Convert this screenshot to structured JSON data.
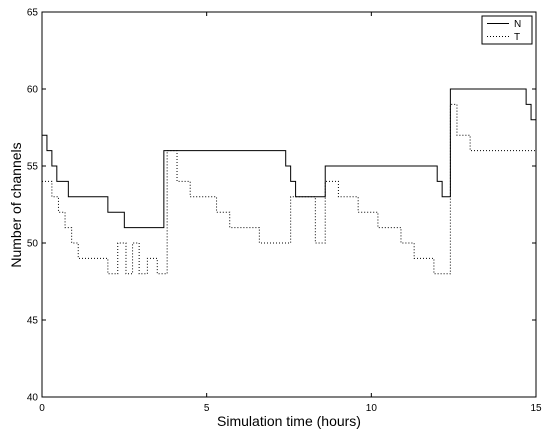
{
  "chart_data": {
    "type": "line",
    "xlabel": "Simulation time (hours)",
    "ylabel": "Number of channels",
    "xlim": [
      0,
      15
    ],
    "ylim": [
      40,
      65
    ],
    "xticks": [
      "0",
      "5",
      "10",
      "15"
    ],
    "yticks": [
      "40",
      "45",
      "50",
      "55",
      "60",
      "65"
    ],
    "grid": false,
    "legend_position": "top-right",
    "series": [
      {
        "name": "N",
        "style": "solid",
        "color": "#000000",
        "step": true,
        "x": [
          0,
          0.15,
          0.3,
          0.45,
          0.8,
          2.0,
          2.5,
          3.7,
          7.4,
          7.55,
          7.7,
          8.6,
          12.0,
          12.15,
          12.4,
          14.7,
          14.85,
          15.0
        ],
        "y": [
          57,
          56,
          55,
          54,
          53,
          52,
          51,
          56,
          55,
          54,
          53,
          55,
          54,
          53,
          60,
          59,
          58,
          58
        ]
      },
      {
        "name": "T",
        "style": "dotted",
        "color": "#000000",
        "step": true,
        "x": [
          0,
          0.3,
          0.5,
          0.7,
          0.9,
          1.1,
          2.0,
          2.3,
          2.55,
          2.75,
          2.95,
          3.2,
          3.5,
          3.8,
          4.1,
          4.5,
          5.3,
          5.7,
          6.6,
          7.55,
          8.3,
          8.6,
          9.0,
          9.6,
          10.2,
          10.9,
          11.3,
          11.9,
          12.4,
          12.6,
          13.0,
          13.5,
          14.5,
          15.0
        ],
        "y": [
          54,
          53,
          52,
          51,
          50,
          49,
          48,
          50,
          48,
          50,
          48,
          49,
          48,
          56,
          54,
          53,
          52,
          51,
          50,
          53,
          50,
          54,
          53,
          52,
          51,
          50,
          49,
          48,
          59,
          57,
          56,
          56,
          56,
          56
        ]
      }
    ]
  }
}
